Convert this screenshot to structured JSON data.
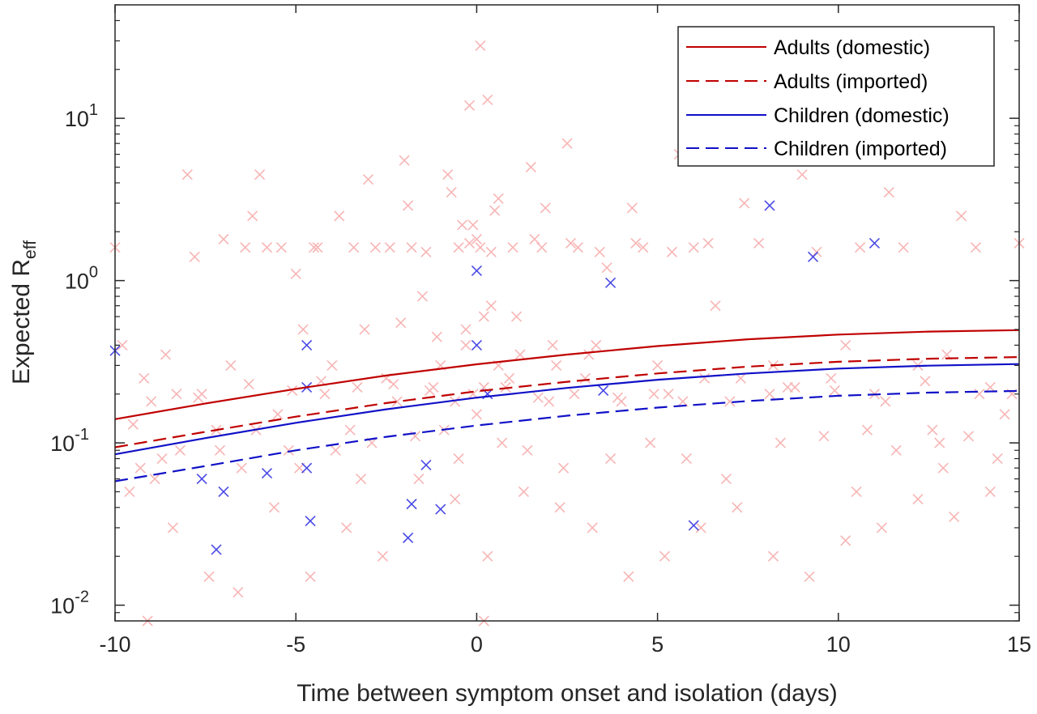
{
  "chart_data": {
    "type": "scatter",
    "title": "",
    "xlabel": "Time between symptom onset and isolation (days)",
    "ylabel_main": "Expected R",
    "ylabel_sub": "eff",
    "xlim": [
      -10,
      15
    ],
    "ylim": [
      0.008,
      50
    ],
    "yscale": "log",
    "grid": false,
    "legend_position": "top-right",
    "x_ticks": [
      {
        "value": -10,
        "label": "-10"
      },
      {
        "value": -5,
        "label": "-5"
      },
      {
        "value": 0,
        "label": "0"
      },
      {
        "value": 5,
        "label": "5"
      },
      {
        "value": 10,
        "label": "10"
      },
      {
        "value": 15,
        "label": "15"
      }
    ],
    "y_ticks": [
      {
        "value": 0.01,
        "base": "10",
        "exp": "-2"
      },
      {
        "value": 0.1,
        "base": "10",
        "exp": "-1"
      },
      {
        "value": 1,
        "base": "10",
        "exp": "0"
      },
      {
        "value": 10,
        "base": "10",
        "exp": "1"
      }
    ],
    "series": [
      {
        "name": "Adults (domestic)",
        "kind": "line",
        "color": "#c00000",
        "dash": "solid",
        "x": [
          -10,
          -7.5,
          -5,
          -2.5,
          0,
          2.5,
          5,
          7.5,
          10,
          12.5,
          15
        ],
        "y": [
          0.14,
          0.175,
          0.215,
          0.26,
          0.305,
          0.35,
          0.395,
          0.435,
          0.465,
          0.485,
          0.495
        ]
      },
      {
        "name": "Adults (imported)",
        "kind": "line",
        "color": "#c00000",
        "dash": "dashed",
        "x": [
          -10,
          -7.5,
          -5,
          -2.5,
          0,
          2.5,
          5,
          7.5,
          10,
          12.5,
          15
        ],
        "y": [
          0.094,
          0.117,
          0.145,
          0.176,
          0.208,
          0.238,
          0.268,
          0.295,
          0.316,
          0.33,
          0.338
        ]
      },
      {
        "name": "Children (domestic)",
        "kind": "line",
        "color": "#1010c8",
        "dash": "solid",
        "x": [
          -10,
          -7.5,
          -5,
          -2.5,
          0,
          2.5,
          5,
          7.5,
          10,
          12.5,
          15
        ],
        "y": [
          0.085,
          0.107,
          0.133,
          0.161,
          0.19,
          0.218,
          0.245,
          0.268,
          0.287,
          0.299,
          0.306
        ]
      },
      {
        "name": "Children (imported)",
        "kind": "line",
        "color": "#1010c8",
        "dash": "dashed",
        "x": [
          -10,
          -7.5,
          -5,
          -2.5,
          0,
          2.5,
          5,
          7.5,
          10,
          12.5,
          15
        ],
        "y": [
          0.058,
          0.072,
          0.09,
          0.109,
          0.128,
          0.147,
          0.165,
          0.181,
          0.195,
          0.204,
          0.209
        ]
      },
      {
        "kind": "scatter",
        "color": "#f7b5b5",
        "marker": "x",
        "x": [
          -10,
          -9.8,
          -9.5,
          -9.2,
          -9,
          -8.9,
          -8.6,
          -8.2,
          -8,
          -7.8,
          -7.6,
          -7.2,
          -7,
          -6.8,
          -6.5,
          -6.2,
          -6,
          -5.8,
          -5.5,
          -5.2,
          -5,
          -4.8,
          -4.5,
          -4.2,
          -4,
          -3.8,
          -3.5,
          -3.2,
          -3,
          -2.8,
          -2.5,
          -2.2,
          -2,
          -1.8,
          -1.5,
          -1.2,
          -1,
          -0.8,
          -0.5,
          -0.3,
          -0.1,
          0,
          0.2,
          0.4,
          0.6,
          0.8,
          1,
          1.2,
          1.5,
          1.8,
          2,
          2.2,
          2.5,
          2.8,
          3,
          3.3,
          3.6,
          4,
          4.3,
          4.6,
          5,
          5.3,
          5.6,
          6,
          6.3,
          6.6,
          7,
          7.4,
          7.8,
          8.2,
          8.6,
          9,
          9.4,
          9.8,
          10.2,
          10.6,
          11,
          11.4,
          11.8,
          12.2,
          12.6,
          13,
          13.4,
          13.8,
          14.2,
          14.6,
          15,
          -9.6,
          -8.4,
          -7.4,
          -6.6,
          -5.6,
          -4.6,
          -3.6,
          -2.6,
          -1.6,
          -0.6,
          0.3,
          1.3,
          2.3,
          3.2,
          4.2,
          5.2,
          6.2,
          7.2,
          8.2,
          9.2,
          10.2,
          11.2,
          12.2,
          13.2,
          14.2,
          -0.2,
          0.1,
          -0.4,
          0.5,
          -1.4,
          1.6,
          -2.4,
          2.6,
          -3.4,
          3.4,
          -4.4,
          4.4,
          -5.4,
          5.4,
          -6.4,
          6.4,
          -0.3,
          0.4,
          -1.1,
          1.1,
          -2.1,
          2.1,
          -3.1,
          3.1,
          0,
          -0.5,
          0.7,
          -0.9,
          1.4,
          -1.7,
          2.4,
          -2.9,
          3.7,
          -3.9,
          4.8,
          -4.9,
          5.8,
          -6.1,
          6.9,
          -7.1,
          8.4,
          -8.7,
          9.6,
          -9.3,
          10.8,
          11.6,
          12.8,
          13.6,
          14.4,
          -0.1,
          0.2,
          -0.6,
          0.9,
          -1.3,
          1.7,
          -2.3,
          2.7,
          -3.3,
          3.9,
          -4.3,
          4.9,
          -5.1,
          5.7,
          -6.3,
          7.3,
          -7.7,
          8.8,
          -8.3,
          9.9,
          11.3,
          12.4,
          13.9,
          -9.1,
          14.8,
          -0.7,
          0.6,
          -1.9,
          1.9,
          0.1,
          -0.2,
          0.3,
          0.2,
          8.1,
          10.5,
          12.9
        ],
        "y": [
          1.6,
          0.4,
          0.13,
          0.25,
          0.18,
          0.06,
          0.35,
          0.09,
          4.5,
          1.4,
          0.2,
          0.12,
          1.8,
          0.3,
          0.07,
          2.5,
          4.5,
          1.6,
          0.15,
          0.09,
          1.1,
          0.5,
          1.6,
          0.2,
          0.3,
          2.5,
          0.12,
          0.06,
          4.2,
          1.6,
          0.25,
          0.18,
          5.5,
          1.6,
          0.8,
          0.22,
          0.3,
          4.5,
          1.6,
          0.4,
          2.2,
          1.8,
          0.6,
          1.5,
          0.3,
          0.22,
          1.6,
          0.35,
          5,
          1.6,
          0.18,
          0.3,
          7,
          1.6,
          0.25,
          0.4,
          1.2,
          0.18,
          2.8,
          1.6,
          0.3,
          0.2,
          6,
          1.6,
          0.25,
          0.7,
          0.18,
          3,
          1.7,
          0.3,
          0.22,
          4.5,
          1.5,
          0.25,
          0.4,
          1.6,
          0.2,
          3.5,
          1.6,
          0.3,
          0.12,
          0.35,
          2.5,
          1.6,
          0.22,
          0.15,
          1.7,
          0.05,
          0.03,
          0.015,
          0.012,
          0.04,
          0.015,
          0.03,
          0.02,
          0.06,
          0.045,
          0.02,
          0.05,
          0.04,
          0.03,
          0.015,
          0.02,
          0.03,
          0.04,
          0.02,
          0.015,
          0.025,
          0.03,
          0.045,
          0.035,
          0.05,
          1.7,
          1.6,
          2.2,
          2.7,
          1.5,
          1.8,
          1.6,
          1.7,
          1.6,
          1.5,
          1.6,
          1.7,
          1.6,
          1.5,
          1.6,
          1.7,
          0.5,
          0.7,
          0.45,
          0.6,
          0.55,
          0.4,
          0.5,
          0.35,
          0.15,
          0.08,
          0.1,
          0.12,
          0.09,
          0.11,
          0.07,
          0.1,
          0.08,
          0.09,
          0.1,
          0.07,
          0.08,
          0.12,
          0.06,
          0.09,
          0.1,
          0.08,
          0.11,
          0.07,
          0.12,
          0.09,
          0.1,
          0.11,
          0.08,
          0.2,
          0.22,
          0.18,
          0.25,
          0.21,
          0.19,
          0.23,
          0.2,
          0.22,
          0.19,
          0.24,
          0.2,
          0.21,
          0.18,
          0.23,
          0.25,
          0.19,
          0.22,
          0.2,
          0.21,
          0.18,
          0.24,
          0.2,
          0.008,
          0.2,
          3.5,
          3.2,
          2.9,
          2.8,
          28,
          12,
          13,
          0.008,
          0.2,
          0.05,
          0.07
        ]
      },
      {
        "kind": "scatter",
        "color": "#4a4ae6",
        "marker": "x",
        "x": [
          -10,
          -7.6,
          -7.2,
          -7,
          -5.8,
          -4.7,
          -4.7,
          -4.7,
          -4.6,
          -1.9,
          -1.8,
          -1.4,
          -1,
          0,
          0,
          0.3,
          3.5,
          3.7,
          6,
          8.1,
          9.3,
          11
        ],
        "y": [
          0.37,
          0.06,
          0.022,
          0.05,
          0.065,
          0.4,
          0.22,
          0.07,
          0.033,
          0.026,
          0.042,
          0.073,
          0.039,
          1.15,
          0.4,
          0.2,
          0.21,
          0.97,
          0.031,
          2.9,
          1.4,
          1.7
        ]
      }
    ]
  }
}
